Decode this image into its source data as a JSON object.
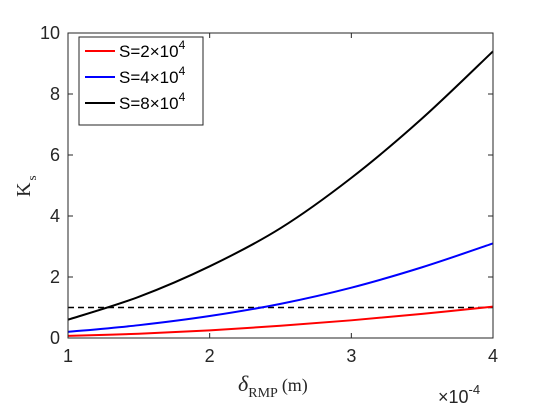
{
  "chart_data": {
    "type": "line",
    "ylabel": "K",
    "ylabel_sub": "s",
    "xlabel": "δ",
    "xlabel_sub": "RMP",
    "xlabel_unit": "(m)",
    "x_exponent_label": "×10",
    "x_exponent": "-4",
    "xlim": [
      1,
      4
    ],
    "ylim": [
      0,
      10
    ],
    "xticks": [
      1,
      2,
      3,
      4
    ],
    "yticks": [
      0,
      2,
      4,
      6,
      8,
      10
    ],
    "x": [
      1.0,
      1.5,
      2.0,
      2.5,
      3.0,
      3.5,
      4.0
    ],
    "series": [
      {
        "name": "S=2×10",
        "exp": "4",
        "color": "#ff0000",
        "values": [
          0.07,
          0.14,
          0.25,
          0.4,
          0.58,
          0.79,
          1.03
        ]
      },
      {
        "name": "S=4×10",
        "exp": "4",
        "color": "#0000ff",
        "values": [
          0.2,
          0.42,
          0.72,
          1.12,
          1.65,
          2.32,
          3.1
        ]
      },
      {
        "name": "S=8×10",
        "exp": "4",
        "color": "#000000",
        "values": [
          0.6,
          1.35,
          2.35,
          3.6,
          5.25,
          7.2,
          9.4
        ]
      }
    ],
    "reference_line": {
      "y": 1,
      "style": "dashed",
      "color": "#000000"
    },
    "legend_position": "top-left",
    "grid": false
  }
}
